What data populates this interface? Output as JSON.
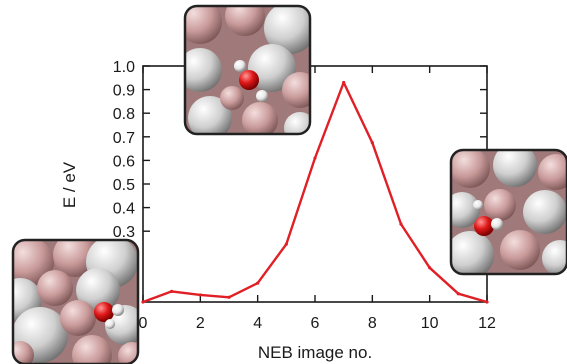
{
  "chart_data": {
    "type": "line",
    "title": "",
    "xlabel": "NEB image no.",
    "ylabel": "E / eV",
    "xlim": [
      0,
      12
    ],
    "ylim": [
      0.0,
      1.0
    ],
    "x_ticks": [
      0,
      2,
      4,
      6,
      8,
      10,
      12
    ],
    "y_tick_labels": [
      "1.0",
      "0.9",
      "0.8",
      "0.7",
      "0.6",
      "0.5",
      "0.4",
      "0.3"
    ],
    "y_tick_values": [
      1.0,
      0.9,
      0.8,
      0.7,
      0.6,
      0.5,
      0.4,
      0.3
    ],
    "grid": false,
    "series": [
      {
        "color": "#e01f26",
        "x": [
          0,
          1,
          2,
          3,
          4,
          5,
          6,
          7,
          8,
          9,
          10,
          11,
          12
        ],
        "y": [
          0.0,
          0.045,
          0.03,
          0.02,
          0.08,
          0.245,
          0.61,
          0.93,
          0.675,
          0.33,
          0.145,
          0.035,
          0.0
        ]
      }
    ]
  },
  "colors": {
    "axis": "#1a1a1a",
    "line": "#e01f26",
    "inset_border": "#222222",
    "atom_pink": "#c99a9a",
    "atom_grey": "#d4d4d4",
    "oxygen": "#e01818",
    "hydrogen": "#f2f2f2"
  },
  "insets": [
    {
      "name": "initial-state-snapshot"
    },
    {
      "name": "transition-state-snapshot"
    },
    {
      "name": "final-state-snapshot"
    }
  ]
}
